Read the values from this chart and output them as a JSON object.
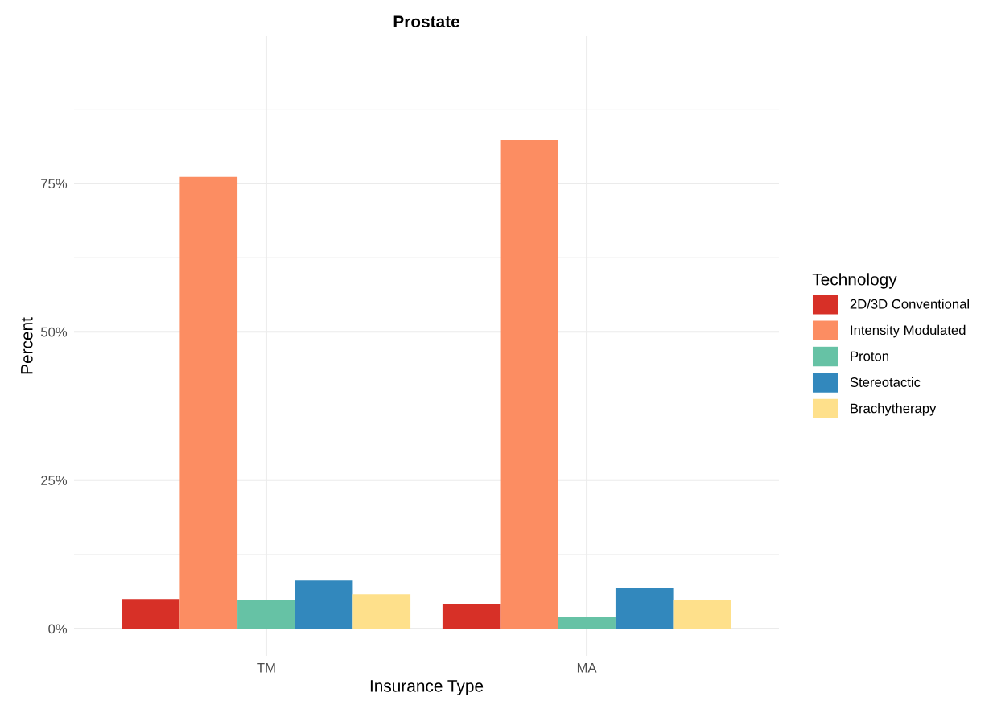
{
  "chart_data": {
    "type": "bar",
    "title": "Prostate",
    "xlabel": "Insurance Type",
    "ylabel": "Percent",
    "legend_title": "Technology",
    "categories": [
      "TM",
      "MA"
    ],
    "series": [
      {
        "name": "2D/3D Conventional",
        "color": "#d73027",
        "values": [
          5.0,
          4.1
        ]
      },
      {
        "name": "Intensity Modulated",
        "color": "#fc8d62",
        "values": [
          76.1,
          82.3
        ]
      },
      {
        "name": "Proton",
        "color": "#66c2a5",
        "values": [
          4.8,
          1.9
        ]
      },
      {
        "name": "Stereotactic",
        "color": "#3288bd",
        "values": [
          8.1,
          6.8
        ]
      },
      {
        "name": "Brachytherapy",
        "color": "#fee08b",
        "values": [
          5.8,
          4.9
        ]
      }
    ],
    "ylim": [
      -4.6,
      99.8
    ],
    "yticks": [
      {
        "value": 0,
        "label": "0%"
      },
      {
        "value": 12.5,
        "label": null
      },
      {
        "value": 25,
        "label": "25%"
      },
      {
        "value": 37.5,
        "label": null
      },
      {
        "value": 50,
        "label": "50%"
      },
      {
        "value": 62.5,
        "label": null
      },
      {
        "value": 75,
        "label": "75%"
      },
      {
        "value": 87.5,
        "label": null
      }
    ],
    "grid": true,
    "legend": "right"
  }
}
